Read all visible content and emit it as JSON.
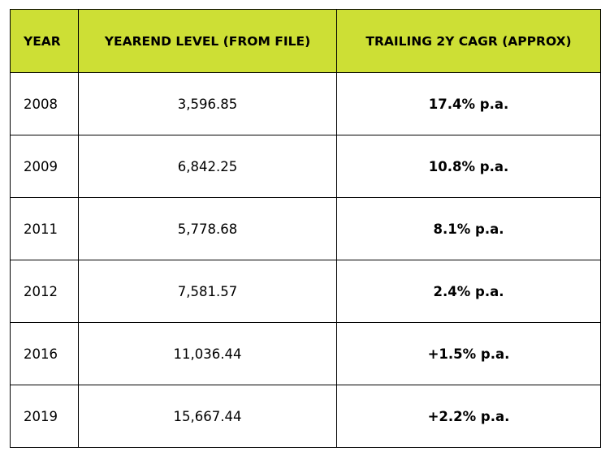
{
  "colors": {
    "header_background": "#cddf35",
    "border": "#000000",
    "text": "#000000",
    "body_background": "#ffffff"
  },
  "table": {
    "headers": {
      "year": "YEAR",
      "level": "YEAREND LEVEL (FROM FILE)",
      "cagr": "TRAILING 2Y CAGR (APPROX)"
    },
    "rows": [
      {
        "year": "2008",
        "level": "3,596.85",
        "cagr": "17.4% p.a."
      },
      {
        "year": "2009",
        "level": "6,842.25",
        "cagr": "10.8% p.a."
      },
      {
        "year": "2011",
        "level": "5,778.68",
        "cagr": "8.1% p.a."
      },
      {
        "year": "2012",
        "level": "7,581.57",
        "cagr": "2.4% p.a."
      },
      {
        "year": "2016",
        "level": "11,036.44",
        "cagr": "+1.5% p.a."
      },
      {
        "year": "2019",
        "level": "15,667.44",
        "cagr": "+2.2% p.a."
      }
    ]
  }
}
